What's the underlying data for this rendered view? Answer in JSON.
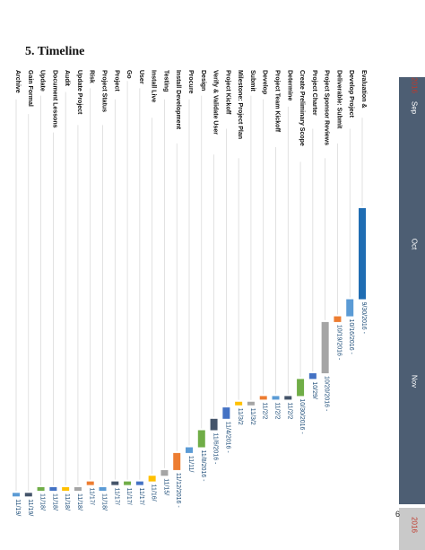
{
  "document": {
    "heading": "5. Timeline",
    "page_number": "6"
  },
  "colors": {
    "header_band": "#4d5e73",
    "bar_blue_dark": "#1f6db3",
    "bar_light_blue": "#5b9bd5",
    "bar_orange": "#ed7d31",
    "bar_gray": "#a5a5a5",
    "bar_yellow": "#ffc000",
    "bar_green": "#70ad47",
    "bar_navy": "#44546a",
    "bar_blue": "#4472c4"
  },
  "chart_data": {
    "type": "gantt",
    "orientation": "rotated-90",
    "timeline_labels": [
      "2016",
      "Sep",
      "Oct",
      "Nov",
      "2016"
    ],
    "tasks": [
      {
        "name": "Evaluation &",
        "start": "2016-09-30",
        "end": "2016-10-16",
        "label": "9/30/2016 -",
        "color": "#1f6db3"
      },
      {
        "name": "Develop Project",
        "start": "2016-10-16",
        "end": "2016-10-19",
        "label": "10/16/2016 -",
        "color": "#5b9bd5"
      },
      {
        "name": "Deliverable: Submit",
        "start": "2016-10-19",
        "end": "2016-10-20",
        "label": "10/19/2016 -",
        "color": "#ed7d31"
      },
      {
        "name": "Project Sponsor Reviews",
        "start": "2016-10-20",
        "end": "2016-10-29",
        "label": "10/20/2016 -",
        "color": "#a5a5a5"
      },
      {
        "name": "Project Charter",
        "start": "2016-10-29",
        "end": "2016-10-30",
        "label": "10/29/",
        "color": "#4472c4"
      },
      {
        "name": "Create Preliminary Scope",
        "start": "2016-10-30",
        "end": "2016-11-02",
        "label": "10/30/2016 -",
        "color": "#70ad47"
      },
      {
        "name": "Determine",
        "start": "2016-11-02",
        "end": "2016-11-02",
        "label": "11/2/2",
        "color": "#44546a"
      },
      {
        "name": "Project Team Kickoff",
        "start": "2016-11-02",
        "end": "2016-11-02",
        "label": "11/2/2",
        "color": "#5b9bd5"
      },
      {
        "name": "Develop",
        "start": "2016-11-02",
        "end": "2016-11-02",
        "label": "11/2/2",
        "color": "#ed7d31"
      },
      {
        "name": "Submit",
        "start": "2016-11-03",
        "end": "2016-11-03",
        "label": "11/3/2",
        "color": "#a5a5a5"
      },
      {
        "name": "Milestone: Project Plan",
        "start": "2016-11-03",
        "end": "2016-11-03",
        "label": "11/3/2",
        "color": "#ffc000"
      },
      {
        "name": "Project Kickoff",
        "start": "2016-11-04",
        "end": "2016-11-06",
        "label": "11/4/2016 -",
        "color": "#4472c4"
      },
      {
        "name": "Verify & Validate User",
        "start": "2016-11-06",
        "end": "2016-11-08",
        "label": "11/6/2016 -",
        "color": "#44546a"
      },
      {
        "name": "Design",
        "start": "2016-11-08",
        "end": "2016-11-11",
        "label": "11/8/2016 -",
        "color": "#70ad47"
      },
      {
        "name": "Procure",
        "start": "2016-11-11",
        "end": "2016-11-12",
        "label": "11/11/",
        "color": "#5b9bd5"
      },
      {
        "name": "Install Development",
        "start": "2016-11-12",
        "end": "2016-11-15",
        "label": "11/12/2016 -",
        "color": "#ed7d31"
      },
      {
        "name": "Testing",
        "start": "2016-11-15",
        "end": "2016-11-16",
        "label": "11/15/",
        "color": "#a5a5a5"
      },
      {
        "name": "Install Live",
        "start": "2016-11-16",
        "end": "2016-11-17",
        "label": "11/16/",
        "color": "#ffc000"
      },
      {
        "name": "User",
        "start": "2016-11-17",
        "end": "2016-11-17",
        "label": "11/17/",
        "color": "#4472c4"
      },
      {
        "name": "Go",
        "start": "2016-11-17",
        "end": "2016-11-17",
        "label": "11/17/",
        "color": "#70ad47"
      },
      {
        "name": "Project",
        "start": "2016-11-17",
        "end": "2016-11-17",
        "label": "11/17/",
        "color": "#44546a"
      },
      {
        "name": "Project Status",
        "start": "2016-11-18",
        "end": "2016-11-18",
        "label": "11/18/",
        "color": "#5b9bd5"
      },
      {
        "name": "Risk",
        "start": "2016-11-17",
        "end": "2016-11-17",
        "label": "11/17/",
        "color": "#ed7d31"
      },
      {
        "name": "Update Project",
        "start": "2016-11-18",
        "end": "2016-11-18",
        "label": "11/18/",
        "color": "#a5a5a5"
      },
      {
        "name": "Audit",
        "start": "2016-11-18",
        "end": "2016-11-18",
        "label": "11/18/",
        "color": "#ffc000"
      },
      {
        "name": "Document Lessons",
        "start": "2016-11-18",
        "end": "2016-11-18",
        "label": "11/18/",
        "color": "#4472c4"
      },
      {
        "name": "Update",
        "start": "2016-11-18",
        "end": "2016-11-18",
        "label": "11/18/",
        "color": "#70ad47"
      },
      {
        "name": "Gain Formal",
        "start": "2016-11-19",
        "end": "2016-11-19",
        "label": "11/19/",
        "color": "#44546a"
      },
      {
        "name": "Archive",
        "start": "2016-11-19",
        "end": "2016-11-19",
        "label": "11/19/",
        "color": "#5b9bd5"
      }
    ]
  }
}
